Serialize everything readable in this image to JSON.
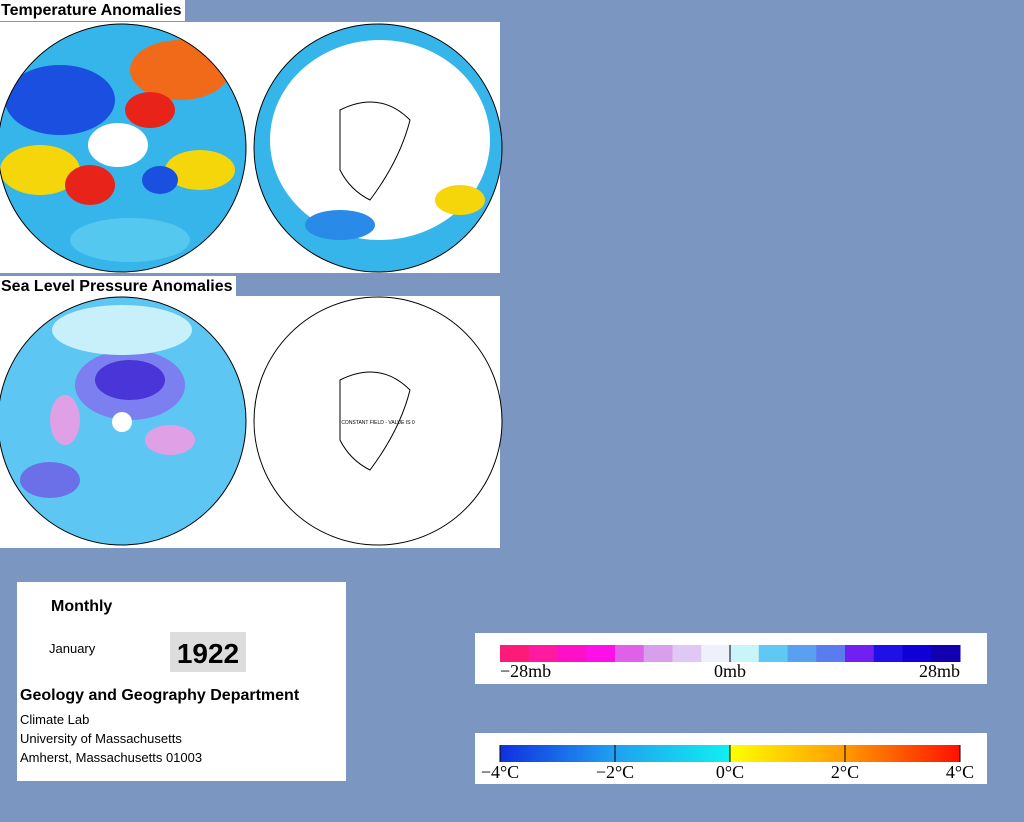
{
  "panels": [
    {
      "title": "Temperature Anomalies"
    },
    {
      "title": "Sea Level Pressure Anomalies",
      "note": "CONSTANT FIELD - VALUE IS 0"
    }
  ],
  "info": {
    "period": "Monthly",
    "month": "January",
    "year": "1922",
    "department": "Geology and Geography Department",
    "lines": [
      "Climate Lab",
      "University of Massachusetts",
      "Amherst, Massachusetts 01003"
    ]
  },
  "legends": {
    "pressure": {
      "labels": [
        "−28mb",
        "0mb",
        "28mb"
      ]
    },
    "temperature": {
      "labels": [
        "−4°C",
        "−2°C",
        "0°C",
        "2°C",
        "4°C"
      ]
    }
  }
}
